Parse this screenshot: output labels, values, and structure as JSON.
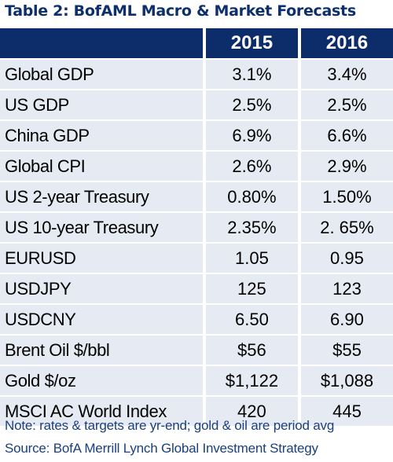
{
  "title": "Table 2: BofAML Macro & Market Forecasts",
  "columns": [
    "",
    "2015",
    "2016"
  ],
  "rows": [
    {
      "label": "Global GDP",
      "y2015": "3.1%",
      "y2016": "3.4%"
    },
    {
      "label": "US GDP",
      "y2015": "2.5%",
      "y2016": "2.5%"
    },
    {
      "label": "China GDP",
      "y2015": "6.9%",
      "y2016": "6.6%"
    },
    {
      "label": "Global CPI",
      "y2015": "2.6%",
      "y2016": "2.9%"
    },
    {
      "label": "US 2-year Treasury",
      "y2015": "0.80%",
      "y2016": "1.50%"
    },
    {
      "label": "US 10-year Treasury",
      "y2015": "2.35%",
      "y2016": "2. 65%"
    },
    {
      "label": "EURUSD",
      "y2015": "1.05",
      "y2016": "0.95"
    },
    {
      "label": "USDJPY",
      "y2015": "125",
      "y2016": "123"
    },
    {
      "label": "USDCNY",
      "y2015": "6.50",
      "y2016": "6.90"
    },
    {
      "label": "Brent Oil $/bbl",
      "y2015": "$56",
      "y2016": "$55"
    },
    {
      "label": "Gold $/oz",
      "y2015": "$1,122",
      "y2016": "$1,088"
    },
    {
      "label": "MSCI AC World Index",
      "y2015": "420",
      "y2016": "445"
    }
  ],
  "note": "Note: rates & targets are yr-end; gold & oil are period avg",
  "source": "Source: BofA Merrill Lynch Global Investment Strategy",
  "colors": {
    "title": "#0d2f6b",
    "header_bg": "#0c2d6a",
    "row_bg": "#e6ebf3",
    "note_text": "#1a3f7c"
  }
}
